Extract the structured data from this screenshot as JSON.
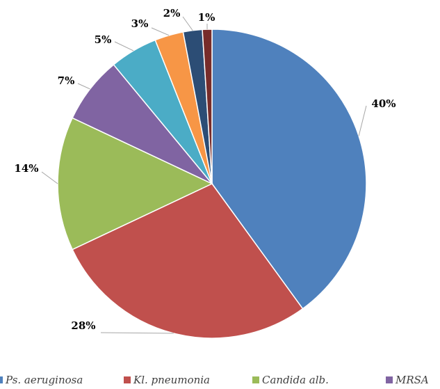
{
  "chart_data": {
    "type": "pie",
    "categories": [
      "Ps. aeruginosa",
      "Kl. pneumonia",
      "Candida alb.",
      "MRSA",
      null,
      null,
      null,
      null
    ],
    "values": [
      40,
      28,
      14,
      7,
      5,
      3,
      2,
      1
    ],
    "value_labels": [
      "40%",
      "28%",
      "14%",
      "7%",
      "5%",
      "3%",
      "2%",
      "1%"
    ],
    "colors": [
      "#4f81bd",
      "#c0504d",
      "#9bbb59",
      "#8064a2",
      "#4bacc6",
      "#f79646",
      "#2c4d75",
      "#772c2a"
    ],
    "legend": "bottom"
  }
}
